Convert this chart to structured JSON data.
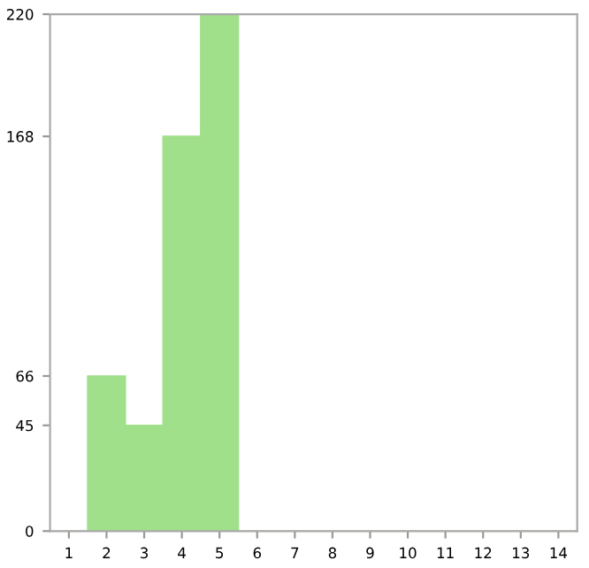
{
  "chart_data": {
    "type": "bar",
    "categories": [
      "1",
      "2",
      "3",
      "4",
      "5",
      "6",
      "7",
      "8",
      "9",
      "10",
      "11",
      "12",
      "13",
      "14"
    ],
    "values": [
      0,
      66,
      45,
      168,
      220,
      0,
      0,
      0,
      0,
      0,
      0,
      0,
      0,
      0
    ],
    "color": "#a0e08a",
    "ylim": [
      0,
      220
    ],
    "yticks": [
      0,
      45,
      66,
      168,
      220
    ],
    "grid": false
  }
}
